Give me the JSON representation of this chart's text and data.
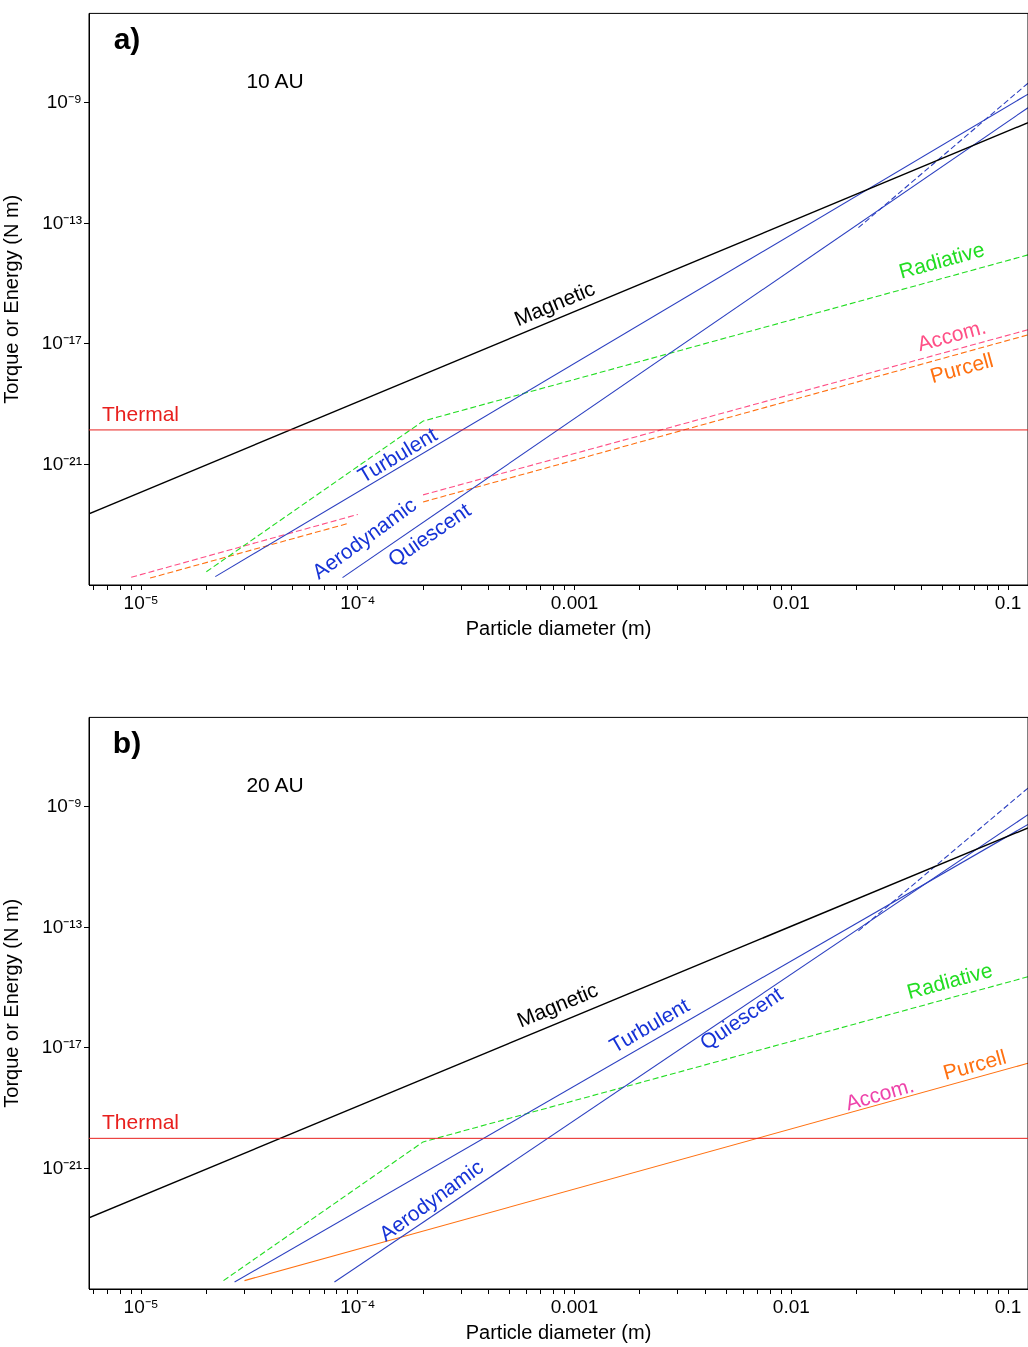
{
  "chart_data": [
    {
      "type": "line",
      "xlabel": "Particle diameter (m)",
      "ylabel": "Torque or Energy (N m)",
      "log": "xy",
      "grid": false,
      "legend": false,
      "xlim": [
        5.75e-06,
        0.1236
      ],
      "ylim": [
        1.3e-25,
        9.3e-07
      ],
      "xticks": [
        {
          "value": 6e-06,
          "label": null
        },
        {
          "value": 7e-06,
          "label": null
        },
        {
          "value": 8e-06,
          "label": null
        },
        {
          "value": 9e-06,
          "label": null
        },
        {
          "value": 1e-05,
          "label": "10⁻⁵"
        },
        {
          "value": 2e-05,
          "label": null
        },
        {
          "value": 3e-05,
          "label": null
        },
        {
          "value": 4e-05,
          "label": null
        },
        {
          "value": 5e-05,
          "label": null
        },
        {
          "value": 6e-05,
          "label": null
        },
        {
          "value": 7e-05,
          "label": null
        },
        {
          "value": 8e-05,
          "label": null
        },
        {
          "value": 9e-05,
          "label": null
        },
        {
          "value": 0.0001,
          "label": "10⁻⁴"
        },
        {
          "value": 0.0002,
          "label": null
        },
        {
          "value": 0.0003,
          "label": null
        },
        {
          "value": 0.0004,
          "label": null
        },
        {
          "value": 0.0005,
          "label": null
        },
        {
          "value": 0.0006,
          "label": null
        },
        {
          "value": 0.0007,
          "label": null
        },
        {
          "value": 0.0008,
          "label": null
        },
        {
          "value": 0.0009,
          "label": null
        },
        {
          "value": 0.001,
          "label": "0.001"
        },
        {
          "value": 0.002,
          "label": null
        },
        {
          "value": 0.003,
          "label": null
        },
        {
          "value": 0.004,
          "label": null
        },
        {
          "value": 0.005,
          "label": null
        },
        {
          "value": 0.006,
          "label": null
        },
        {
          "value": 0.007,
          "label": null
        },
        {
          "value": 0.008,
          "label": null
        },
        {
          "value": 0.009,
          "label": null
        },
        {
          "value": 0.01,
          "label": "0.01"
        },
        {
          "value": 0.02,
          "label": null
        },
        {
          "value": 0.03,
          "label": null
        },
        {
          "value": 0.04,
          "label": null
        },
        {
          "value": 0.05,
          "label": null
        },
        {
          "value": 0.06,
          "label": null
        },
        {
          "value": 0.07,
          "label": null
        },
        {
          "value": 0.08,
          "label": null
        },
        {
          "value": 0.09,
          "label": null
        },
        {
          "value": 0.1,
          "label": "0.1"
        }
      ],
      "yticks": [
        {
          "value": 1e-21,
          "label": "10⁻²¹"
        },
        {
          "value": 1e-17,
          "label": "10⁻¹⁷"
        },
        {
          "value": 1e-13,
          "label": "10⁻¹³"
        },
        {
          "value": 1e-09,
          "label": "10⁻⁹"
        }
      ],
      "ref_lines": [
        {
          "axis": "y",
          "value": 1.4e-20,
          "label": "Thermal",
          "color": "#e8201e"
        }
      ],
      "annotations": [
        "a)",
        "10 AU",
        "Aerodynamic"
      ],
      "series": [
        {
          "name": "Magnetic",
          "color": "#000000",
          "x": [
            5.75e-06,
            0.1236
          ],
          "values": [
            2.3e-23,
            2.2e-10
          ]
        },
        {
          "name": "Turbulent",
          "color": "#2b3fc0",
          "x": [
            2.2e-05,
            0.1236
          ],
          "values": [
            1.9e-25,
            1.95e-09
          ]
        },
        {
          "name": "Quiescent",
          "color": "#2b3fc0",
          "x": [
            8.5e-05,
            0.1236
          ],
          "values": [
            1.76e-25,
            6.9e-10
          ]
        },
        {
          "color": "#2b3fc0",
          "line_style": "dashed",
          "x": [
            0.0204,
            0.1236
          ],
          "values": [
            7.2e-14,
            4.5e-09
          ]
        },
        {
          "name": "Radiative",
          "color": "#22dd22",
          "line_style": "dashed",
          "x": [
            2e-05,
            0.0002,
            0.1236
          ],
          "values": [
            2.75e-25,
            2.75e-20,
            9e-15
          ]
        },
        {
          "name": "Accom.",
          "color": "#ff4f86",
          "line_style": "dashed",
          "x": [
            9e-06,
            0.0001,
            0.00015,
            0.0002,
            0.1236
          ],
          "values": [
            1.8e-25,
            2.2e-23,
            null,
            9.8e-23,
            2.95e-17
          ]
        },
        {
          "name": "Purcell",
          "color": "#ff7010",
          "line_style": "dashed",
          "x": [
            1.1e-05,
            9e-05,
            0.00015,
            0.0002,
            0.1236
          ],
          "values": [
            1.7e-25,
            1.1e-23,
            null,
            5.7e-23,
            2e-17
          ]
        }
      ]
    },
    {
      "type": "line",
      "xlabel": "Particle diameter (m)",
      "ylabel": "Torque or Energy (N m)",
      "log": "xy",
      "grid": false,
      "legend": false,
      "xlim": [
        5.75e-06,
        0.1236
      ],
      "ylim": [
        1.3e-25,
        9.3e-07
      ],
      "xticks": [
        {
          "value": 6e-06,
          "label": null
        },
        {
          "value": 7e-06,
          "label": null
        },
        {
          "value": 8e-06,
          "label": null
        },
        {
          "value": 9e-06,
          "label": null
        },
        {
          "value": 1e-05,
          "label": "10⁻⁵"
        },
        {
          "value": 2e-05,
          "label": null
        },
        {
          "value": 3e-05,
          "label": null
        },
        {
          "value": 4e-05,
          "label": null
        },
        {
          "value": 5e-05,
          "label": null
        },
        {
          "value": 6e-05,
          "label": null
        },
        {
          "value": 7e-05,
          "label": null
        },
        {
          "value": 8e-05,
          "label": null
        },
        {
          "value": 9e-05,
          "label": null
        },
        {
          "value": 0.0001,
          "label": "10⁻⁴"
        },
        {
          "value": 0.0002,
          "label": null
        },
        {
          "value": 0.0003,
          "label": null
        },
        {
          "value": 0.0004,
          "label": null
        },
        {
          "value": 0.0005,
          "label": null
        },
        {
          "value": 0.0006,
          "label": null
        },
        {
          "value": 0.0007,
          "label": null
        },
        {
          "value": 0.0008,
          "label": null
        },
        {
          "value": 0.0009,
          "label": null
        },
        {
          "value": 0.001,
          "label": "0.001"
        },
        {
          "value": 0.002,
          "label": null
        },
        {
          "value": 0.003,
          "label": null
        },
        {
          "value": 0.004,
          "label": null
        },
        {
          "value": 0.005,
          "label": null
        },
        {
          "value": 0.006,
          "label": null
        },
        {
          "value": 0.007,
          "label": null
        },
        {
          "value": 0.008,
          "label": null
        },
        {
          "value": 0.009,
          "label": null
        },
        {
          "value": 0.01,
          "label": "0.01"
        },
        {
          "value": 0.02,
          "label": null
        },
        {
          "value": 0.03,
          "label": null
        },
        {
          "value": 0.04,
          "label": null
        },
        {
          "value": 0.05,
          "label": null
        },
        {
          "value": 0.06,
          "label": null
        },
        {
          "value": 0.07,
          "label": null
        },
        {
          "value": 0.08,
          "label": null
        },
        {
          "value": 0.09,
          "label": null
        },
        {
          "value": 0.1,
          "label": "0.1"
        }
      ],
      "yticks": [
        {
          "value": 1e-21,
          "label": "10⁻²¹"
        },
        {
          "value": 1e-17,
          "label": "10⁻¹⁷"
        },
        {
          "value": 1e-13,
          "label": "10⁻¹³"
        },
        {
          "value": 1e-09,
          "label": "10⁻⁹"
        }
      ],
      "ref_lines": [
        {
          "axis": "y",
          "value": 1e-20,
          "label": "Thermal",
          "color": "#e8201e"
        }
      ],
      "annotations": [
        "b)",
        "20 AU",
        "Aerodynamic",
        "Accom."
      ],
      "series": [
        {
          "name": "Magnetic",
          "color": "#000000",
          "x": [
            5.75e-06,
            0.1236
          ],
          "values": [
            2.3e-23,
            2e-10
          ]
        },
        {
          "name": "Turbulent",
          "color": "#2b3fc0",
          "x": [
            2.7e-05,
            0.1236
          ],
          "values": [
            1.7e-25,
            2.6e-10
          ]
        },
        {
          "name": "Quiescent",
          "color": "#2b3fc0",
          "x": [
            7.8e-05,
            0.1236
          ],
          "values": [
            1.7e-25,
            5.5e-10
          ]
        },
        {
          "color": "#2b3fc0",
          "line_style": "dashed",
          "x": [
            0.0204,
            0.1236
          ],
          "values": [
            7.7e-14,
            4.2e-09
          ]
        },
        {
          "name": "Radiative",
          "color": "#22dd22",
          "line_style": "dashed",
          "x": [
            2.4e-05,
            0.0002,
            0.1236
          ],
          "values": [
            1.9e-25,
            7.6e-21,
            2.3e-15
          ]
        },
        {
          "name": "Purcell",
          "color": "#ff7010",
          "x": [
            3e-05,
            0.1236
          ],
          "values": [
            1.9e-25,
            3.1e-18
          ]
        }
      ]
    }
  ]
}
